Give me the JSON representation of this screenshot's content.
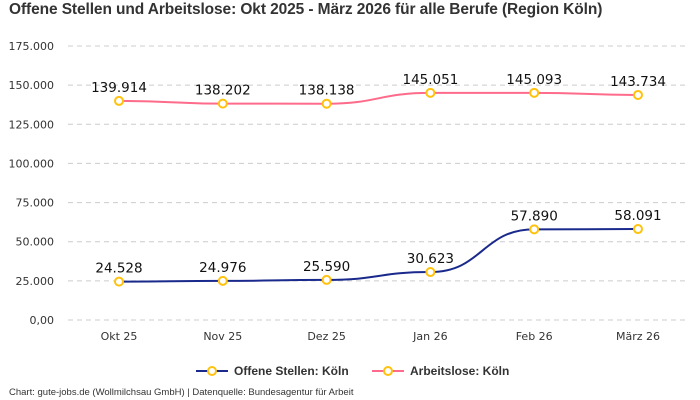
{
  "chart_data": {
    "type": "line",
    "title": "Offene Stellen und Arbeitslose: Okt 2025 - März 2026 für alle Berufe (Region Köln)",
    "categories": [
      "Okt 25",
      "Nov 25",
      "Dez 25",
      "Jan 26",
      "Feb 26",
      "März 26"
    ],
    "ylim": [
      0,
      175000
    ],
    "yticks": [
      0,
      25000,
      50000,
      75000,
      100000,
      125000,
      150000,
      175000
    ],
    "ytick_labels": [
      "0,00",
      "25.000",
      "50.000",
      "75.000",
      "100.000",
      "125.000",
      "150.000",
      "175.000"
    ],
    "grid": true,
    "legend": "bottom",
    "marker_color": "#FFC20E",
    "series": [
      {
        "name": "Offene Stellen: Köln",
        "color": "#1A2A8C",
        "values": [
          24528,
          24976,
          25590,
          30623,
          57890,
          58091
        ],
        "labels": [
          "24.528",
          "24.976",
          "25.590",
          "30.623",
          "57.890",
          "58.091"
        ]
      },
      {
        "name": "Arbeitslose: Köln",
        "color": "#FF6B8A",
        "values": [
          139914,
          138202,
          138138,
          145051,
          145093,
          143734
        ],
        "labels": [
          "139.914",
          "138.202",
          "138.138",
          "145.051",
          "145.093",
          "143.734"
        ]
      }
    ],
    "source": "Chart: gute-jobs.de (Wollmilchsau GmbH) | Datenquelle: Bundesagentur für Arbeit"
  }
}
